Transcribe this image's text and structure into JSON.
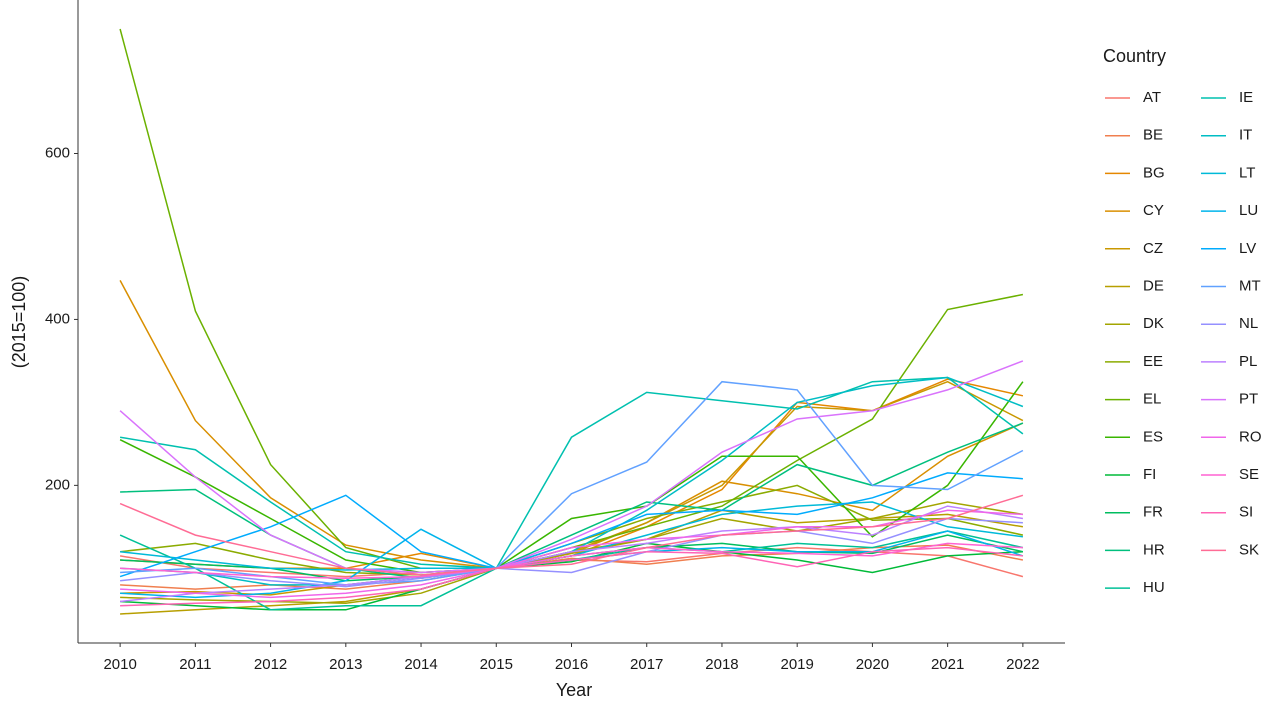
{
  "chart_data": {
    "type": "line",
    "x_label": "Year",
    "y_label": "(2015=100)",
    "legend_title": "Country",
    "x": [
      2010,
      2011,
      2012,
      2013,
      2014,
      2015,
      2016,
      2017,
      2018,
      2019,
      2020,
      2021,
      2022
    ],
    "xlim": [
      2009.44,
      2022.56
    ],
    "xticks": [
      2010,
      2011,
      2012,
      2013,
      2014,
      2015,
      2016,
      2017,
      2018,
      2019,
      2020,
      2021,
      2022
    ],
    "ylim": [
      10,
      785
    ],
    "yticks": [
      200,
      400,
      600
    ],
    "series": [
      {
        "name": "AT",
        "color": "#F8766D",
        "values": [
          115,
          100,
          95,
          90,
          95,
          100,
          110,
          108,
          118,
          125,
          120,
          115,
          90
        ]
      },
      {
        "name": "BE",
        "color": "#F07F4F",
        "values": [
          80,
          75,
          80,
          75,
          85,
          100,
          112,
          105,
          115,
          118,
          125,
          128,
          110
        ]
      },
      {
        "name": "BG",
        "color": "#E58700",
        "values": [
          110,
          105,
          100,
          100,
          118,
          100,
          115,
          150,
          195,
          300,
          290,
          328,
          308
        ]
      },
      {
        "name": "CY",
        "color": "#D98F00",
        "values": [
          447,
          278,
          185,
          128,
          110,
          100,
          120,
          155,
          205,
          190,
          170,
          235,
          275
        ]
      },
      {
        "name": "CZ",
        "color": "#C99800",
        "values": [
          70,
          72,
          68,
          80,
          90,
          100,
          118,
          155,
          200,
          295,
          290,
          325,
          278
        ]
      },
      {
        "name": "DE",
        "color": "#B79F00",
        "values": [
          45,
          50,
          55,
          60,
          75,
          100,
          118,
          135,
          170,
          155,
          160,
          165,
          150
        ]
      },
      {
        "name": "DK",
        "color": "#A3A500",
        "values": [
          65,
          62,
          60,
          58,
          70,
          100,
          120,
          135,
          160,
          145,
          160,
          180,
          165
        ]
      },
      {
        "name": "EE",
        "color": "#8BAB00",
        "values": [
          120,
          130,
          110,
          95,
          92,
          100,
          130,
          160,
          180,
          200,
          158,
          160,
          140
        ]
      },
      {
        "name": "EL",
        "color": "#6BB100",
        "values": [
          750,
          410,
          225,
          125,
          100,
          100,
          125,
          150,
          175,
          230,
          280,
          412,
          430
        ]
      },
      {
        "name": "ES",
        "color": "#39B600",
        "values": [
          255,
          210,
          160,
          110,
          95,
          100,
          160,
          175,
          235,
          235,
          138,
          200,
          325
        ]
      },
      {
        "name": "FI",
        "color": "#00BA38",
        "values": [
          60,
          55,
          50,
          50,
          75,
          100,
          108,
          130,
          120,
          110,
          95,
          115,
          120
        ]
      },
      {
        "name": "FR",
        "color": "#00BD5F",
        "values": [
          110,
          105,
          100,
          85,
          90,
          100,
          115,
          125,
          130,
          120,
          118,
          140,
          120
        ]
      },
      {
        "name": "HR",
        "color": "#00BF7D",
        "values": [
          192,
          195,
          140,
          100,
          88,
          100,
          140,
          180,
          170,
          225,
          200,
          240,
          275
        ]
      },
      {
        "name": "HU",
        "color": "#00C097",
        "values": [
          140,
          100,
          50,
          55,
          55,
          100,
          110,
          125,
          120,
          130,
          125,
          145,
          125
        ]
      },
      {
        "name": "IE",
        "color": "#00C0AF",
        "values": [
          258,
          243,
          180,
          120,
          105,
          100,
          258,
          312,
          302,
          292,
          325,
          330,
          262
        ]
      },
      {
        "name": "IT",
        "color": "#00BDC4",
        "values": [
          100,
          95,
          80,
          80,
          90,
          100,
          120,
          170,
          230,
          300,
          320,
          330,
          295
        ]
      },
      {
        "name": "LT",
        "color": "#00BAD8",
        "values": [
          120,
          110,
          100,
          98,
          100,
          100,
          115,
          140,
          165,
          175,
          180,
          150,
          138
        ]
      },
      {
        "name": "LU",
        "color": "#00B4EB",
        "values": [
          70,
          65,
          70,
          85,
          147,
          100,
          110,
          120,
          125,
          120,
          120,
          145,
          115
        ]
      },
      {
        "name": "LV",
        "color": "#00ABFD",
        "values": [
          90,
          120,
          150,
          188,
          120,
          100,
          130,
          165,
          170,
          165,
          185,
          215,
          208
        ]
      },
      {
        "name": "MT",
        "color": "#61A1FF",
        "values": [
          95,
          100,
          90,
          80,
          85,
          100,
          190,
          228,
          325,
          315,
          200,
          195,
          242
        ]
      },
      {
        "name": "NL",
        "color": "#9590FF",
        "values": [
          85,
          95,
          85,
          78,
          88,
          100,
          95,
          120,
          140,
          145,
          130,
          160,
          155
        ]
      },
      {
        "name": "PL",
        "color": "#BC81FF",
        "values": [
          60,
          70,
          75,
          80,
          90,
          100,
          120,
          130,
          145,
          150,
          140,
          175,
          160
        ]
      },
      {
        "name": "PT",
        "color": "#D973FC",
        "values": [
          290,
          210,
          140,
          100,
          95,
          100,
          135,
          175,
          240,
          280,
          290,
          315,
          350
        ]
      },
      {
        "name": "RO",
        "color": "#F066EA",
        "values": [
          75,
          70,
          65,
          70,
          80,
          100,
          125,
          135,
          140,
          150,
          150,
          170,
          165
        ]
      },
      {
        "name": "SE",
        "color": "#FF62D2",
        "values": [
          100,
          95,
          90,
          88,
          90,
          100,
          115,
          125,
          120,
          118,
          115,
          130,
          125
        ]
      },
      {
        "name": "SI",
        "color": "#FF64B6",
        "values": [
          55,
          58,
          60,
          65,
          75,
          100,
          110,
          120,
          118,
          102,
          120,
          125,
          115
        ]
      },
      {
        "name": "SK",
        "color": "#FF6C95",
        "values": [
          178,
          140,
          120,
          100,
          92,
          100,
          105,
          125,
          140,
          145,
          150,
          160,
          188
        ]
      }
    ]
  }
}
